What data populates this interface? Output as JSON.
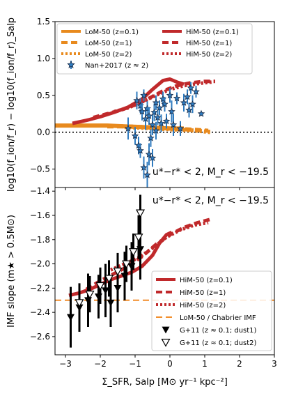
{
  "chart_data": [
    {
      "type": "scatter",
      "panel": "top",
      "ylabel": "log10(f_ion/f_r) − log10(f_ion/f_r)_Salp",
      "ylim": [
        -0.75,
        1.5
      ],
      "yticks": [
        "−0.5",
        "0.0",
        "0.5",
        "1.0",
        "1.5"
      ],
      "ytick_values": [
        -0.5,
        0.0,
        0.5,
        1.0,
        1.5
      ],
      "xlim": [
        -3.3,
        3.0
      ],
      "reference_line_y": 0.0,
      "annotation": "u*−r* < 2, M_r < −19.5",
      "legend_location": "upper left",
      "colors": {
        "lom": "#e88a1e",
        "him": "#c0292b",
        "data": "#2f7bbf"
      },
      "series": [
        {
          "name": "LoM-50 (z=0.1)",
          "style": "solid",
          "color": "#e88a1e",
          "x": [
            -3.3,
            -2.8,
            -2.3,
            -1.8,
            -1.3,
            -0.8,
            -0.4,
            0.0,
            0.4
          ],
          "y": [
            0.09,
            0.09,
            0.09,
            0.09,
            0.08,
            0.07,
            0.06,
            0.05,
            0.05
          ]
        },
        {
          "name": "LoM-50 (z=1)",
          "style": "dashed",
          "color": "#e88a1e",
          "x": [
            -1.8,
            -1.3,
            -0.8,
            -0.4,
            0.0,
            0.4,
            0.8,
            1.1
          ],
          "y": [
            0.08,
            0.08,
            0.07,
            0.06,
            0.05,
            0.04,
            0.03,
            0.02
          ]
        },
        {
          "name": "LoM-50 (z=2)",
          "style": "dotted",
          "color": "#e88a1e",
          "x": [
            -1.3,
            -0.8,
            -0.4,
            0.0,
            0.4,
            0.8,
            1.2
          ],
          "y": [
            0.07,
            0.06,
            0.05,
            0.04,
            0.03,
            0.02,
            0.0
          ]
        },
        {
          "name": "HiM-50 (z=0.1)",
          "style": "solid",
          "color": "#c0292b",
          "x": [
            -2.8,
            -2.4,
            -2.0,
            -1.6,
            -1.2,
            -0.8,
            -0.5,
            -0.2,
            0.0,
            0.2,
            0.4
          ],
          "y": [
            0.12,
            0.16,
            0.21,
            0.27,
            0.34,
            0.45,
            0.58,
            0.7,
            0.72,
            0.68,
            0.65
          ]
        },
        {
          "name": "HiM-50 (z=1)",
          "style": "dashed",
          "color": "#c0292b",
          "x": [
            -2.2,
            -1.8,
            -1.4,
            -1.0,
            -0.6,
            -0.2,
            0.2,
            0.6,
            1.0,
            1.3
          ],
          "y": [
            0.2,
            0.25,
            0.3,
            0.37,
            0.46,
            0.56,
            0.63,
            0.67,
            0.69,
            0.69
          ]
        },
        {
          "name": "HiM-50 (z=2)",
          "style": "dotted",
          "color": "#c0292b",
          "x": [
            -1.6,
            -1.2,
            -0.8,
            -0.4,
            0.0,
            0.4,
            0.8,
            1.2
          ],
          "y": [
            0.28,
            0.33,
            0.41,
            0.5,
            0.58,
            0.63,
            0.66,
            0.68
          ]
        },
        {
          "name": "Nan+2017 (z ≈ 2)",
          "style": "star-markers",
          "color": "#2f7bbf",
          "points": [
            {
              "x": -0.95,
              "y": 0.43,
              "yerr": 0.12
            },
            {
              "x": -0.85,
              "y": 0.36,
              "yerr": 0.1
            },
            {
              "x": -0.8,
              "y": 0.28,
              "yerr": 0.12
            },
            {
              "x": -0.75,
              "y": 0.5,
              "yerr": 0.08
            },
            {
              "x": -0.7,
              "y": 0.18,
              "yerr": 0.15
            },
            {
              "x": -0.65,
              "y": 0.32,
              "yerr": 0.1
            },
            {
              "x": -0.6,
              "y": 0.22,
              "yerr": 0.12
            },
            {
              "x": -0.55,
              "y": -0.08,
              "yerr": 0.12
            },
            {
              "x": -0.5,
              "y": 0.1,
              "yerr": 0.14
            },
            {
              "x": -0.45,
              "y": 0.27,
              "yerr": 0.12
            },
            {
              "x": -0.4,
              "y": 0.4,
              "yerr": 0.1
            },
            {
              "x": -0.35,
              "y": 0.2,
              "yerr": 0.1
            },
            {
              "x": -0.3,
              "y": 0.33,
              "yerr": 0.1
            },
            {
              "x": -0.25,
              "y": 0.12,
              "yerr": 0.12
            },
            {
              "x": -0.2,
              "y": 0.45,
              "yerr": 0.1
            },
            {
              "x": -0.15,
              "y": 0.38,
              "yerr": 0.1
            },
            {
              "x": -0.1,
              "y": 0.15,
              "yerr": 0.1
            },
            {
              "x": 0.0,
              "y": 0.5,
              "yerr": 0.1
            },
            {
              "x": 0.05,
              "y": 0.28,
              "yerr": 0.15
            },
            {
              "x": 0.1,
              "y": 0.1,
              "yerr": 0.15
            },
            {
              "x": 0.2,
              "y": 0.46,
              "yerr": 0.08
            },
            {
              "x": 0.3,
              "y": 0.05,
              "yerr": 0.1
            },
            {
              "x": 0.4,
              "y": 0.4,
              "yerr": 0.12
            },
            {
              "x": 0.5,
              "y": 0.48,
              "yerr": 0.1
            },
            {
              "x": 0.55,
              "y": 0.3,
              "yerr": 0.1
            },
            {
              "x": 0.6,
              "y": 0.6,
              "yerr": 0.08
            },
            {
              "x": 0.65,
              "y": 0.38,
              "yerr": 0.12
            },
            {
              "x": 0.75,
              "y": 0.55,
              "yerr": 0.08
            },
            {
              "x": 0.9,
              "y": 0.25,
              "yerr": 0.0
            },
            {
              "x": -1.2,
              "y": 0.05,
              "yerr": 0.15
            },
            {
              "x": -1.0,
              "y": -0.05,
              "yerr": 0.12
            },
            {
              "x": -0.9,
              "y": -0.18,
              "yerr": 0.12
            },
            {
              "x": -0.75,
              "y": -0.48,
              "yerr": 0.15
            },
            {
              "x": -0.65,
              "y": -0.58,
              "yerr": 0.18
            },
            {
              "x": -0.6,
              "y": -0.3,
              "yerr": 0.15
            },
            {
              "x": -0.5,
              "y": -0.35,
              "yerr": 0.12
            },
            {
              "x": -0.4,
              "y": 0.02,
              "yerr": 0.12
            },
            {
              "x": -0.85,
              "y": -0.25,
              "yerr": 0.1
            }
          ]
        }
      ]
    },
    {
      "type": "scatter",
      "panel": "bottom",
      "ylabel": "IMF slope (m★ > 0.5M⊙)",
      "ylim": [
        -2.75,
        -1.37
      ],
      "yticks": [
        "−2.6",
        "−2.4",
        "−2.2",
        "−2.0",
        "−1.8",
        "−1.6",
        "−1.4"
      ],
      "ytick_values": [
        -2.6,
        -2.4,
        -2.2,
        -2.0,
        -1.8,
        -1.6,
        -1.4
      ],
      "xlabel": "Σ_SFR, Salp [M⊙ yr⁻¹ kpc⁻²]",
      "xlim": [
        -3.3,
        3.0
      ],
      "xticks": [
        "−3",
        "−2",
        "−1",
        "0",
        "1",
        "2",
        "3"
      ],
      "xtick_values": [
        -3,
        -2,
        -1,
        0,
        1,
        2,
        3
      ],
      "annotation": "u*−r* < 2, M_r < −19.5",
      "legend_location": "lower right",
      "series": [
        {
          "name": "HiM-50 (z=0.1)",
          "style": "solid",
          "color": "#c0292b",
          "x": [
            -2.9,
            -2.6,
            -2.3,
            -2.0,
            -1.7,
            -1.4,
            -1.1,
            -0.8,
            -0.5,
            -0.3,
            -0.1,
            0.05
          ],
          "y": [
            -2.26,
            -2.24,
            -2.21,
            -2.17,
            -2.13,
            -2.1,
            -2.07,
            -2.02,
            -1.93,
            -1.83,
            -1.76,
            -1.74
          ]
        },
        {
          "name": "HiM-50 (z=1)",
          "style": "dashed",
          "color": "#c0292b",
          "x": [
            -2.4,
            -2.0,
            -1.6,
            -1.2,
            -0.8,
            -0.4,
            0.0,
            0.4,
            0.8,
            1.2
          ],
          "y": [
            -2.21,
            -2.14,
            -2.08,
            -2.02,
            -1.94,
            -1.84,
            -1.76,
            -1.7,
            -1.66,
            -1.63
          ]
        },
        {
          "name": "HiM-50 (z=2)",
          "style": "dotted",
          "color": "#c0292b",
          "x": [
            -1.7,
            -1.3,
            -0.9,
            -0.5,
            -0.1,
            0.3,
            0.7,
            1.1
          ],
          "y": [
            -2.05,
            -2.0,
            -1.95,
            -1.87,
            -1.78,
            -1.72,
            -1.68,
            -1.66
          ]
        },
        {
          "name": "LoM-50 / Chabrier IMF",
          "style": "dashed-hline",
          "color": "#f28e2b",
          "y": -2.3
        },
        {
          "name": "G+11 (z ≈ 0.1; dust1)",
          "style": "filled-triangle",
          "color": "#000000",
          "points": [
            {
              "x": -2.85,
              "y": -2.44,
              "yerr": 0.25
            },
            {
              "x": -2.6,
              "y": -2.36,
              "yerr": 0.2
            },
            {
              "x": -2.35,
              "y": -2.3,
              "yerr": 0.22
            },
            {
              "x": -2.05,
              "y": -2.27,
              "yerr": 0.18
            },
            {
              "x": -1.85,
              "y": -2.22,
              "yerr": 0.22
            },
            {
              "x": -1.7,
              "y": -2.32,
              "yerr": 0.2
            },
            {
              "x": -1.5,
              "y": -2.2,
              "yerr": 0.2
            },
            {
              "x": -1.3,
              "y": -2.1,
              "yerr": 0.2
            },
            {
              "x": -1.1,
              "y": -2.02,
              "yerr": 0.2
            },
            {
              "x": -0.85,
              "y": -1.88,
              "yerr": 0.25
            }
          ]
        },
        {
          "name": "G+11 (z ≈ 0.1; dust2)",
          "style": "open-triangle",
          "color": "#000000",
          "points": [
            {
              "x": -2.6,
              "y": -2.32,
              "yerr": 0.15
            },
            {
              "x": -2.3,
              "y": -2.25,
              "yerr": 0.15
            },
            {
              "x": -2.0,
              "y": -2.18,
              "yerr": 0.15
            },
            {
              "x": -1.75,
              "y": -2.12,
              "yerr": 0.15
            },
            {
              "x": -1.5,
              "y": -2.06,
              "yerr": 0.15
            },
            {
              "x": -1.25,
              "y": -2.0,
              "yerr": 0.15
            },
            {
              "x": -1.05,
              "y": -1.9,
              "yerr": 0.15
            },
            {
              "x": -0.9,
              "y": -1.78,
              "yerr": 0.18
            },
            {
              "x": -0.85,
              "y": -1.58,
              "yerr": 0.15
            }
          ]
        }
      ]
    }
  ]
}
